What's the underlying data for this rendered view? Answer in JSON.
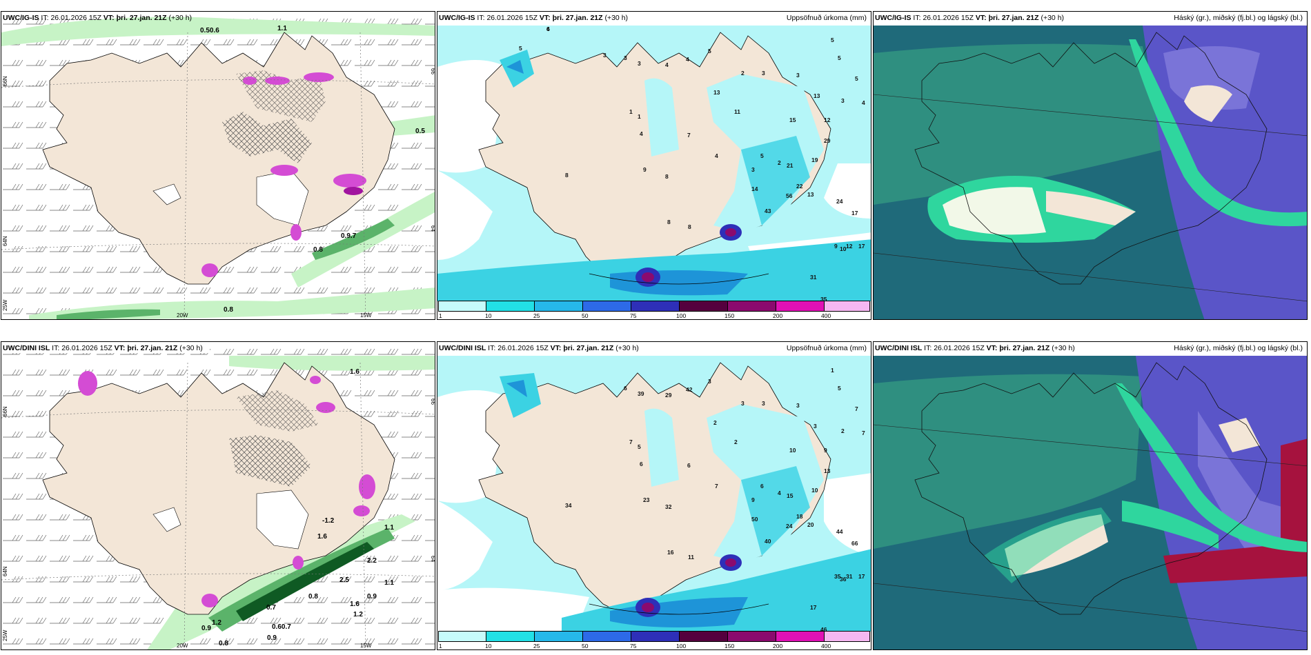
{
  "panels": [
    {
      "id": "top-left",
      "header": {
        "model": "UWC/IG-IS",
        "it_label": "IT:",
        "it_value": "26.01.2026 15Z",
        "vt_label": "VT:",
        "vt_value": "þri. 27.jan. 21Z",
        "lead": "(+30 h)"
      },
      "right_title": "",
      "lat_labels": [
        "66N",
        "64N",
        "25W"
      ],
      "lon_labels": [
        "20W",
        "15W"
      ],
      "right_lat_labels": [
        "66",
        "64"
      ],
      "values": [
        "0.50.6",
        "1.1",
        "0.5",
        "0.9.7",
        "0.8",
        "0.8"
      ]
    },
    {
      "id": "top-middle",
      "header": {
        "model": "UWC/IG-IS",
        "it_label": "IT:",
        "it_value": "26.01.2026 15Z",
        "vt_label": "VT:",
        "vt_value": "þri. 27.jan. 21Z",
        "lead": "(+30 h)"
      },
      "right_title": "Uppsöfnuð úrkoma (mm)",
      "values": [
        "6",
        "5",
        "3",
        "3",
        "3",
        "4",
        "4",
        "5",
        "2",
        "3",
        "3",
        "13",
        "11",
        "13",
        "15",
        "12",
        "29",
        "19",
        "21",
        "22",
        "13",
        "14",
        "43",
        "56",
        "24",
        "31",
        "35",
        "17",
        "17",
        "12",
        "9",
        "10",
        "9",
        "8",
        "8",
        "8",
        "8",
        "1",
        "1",
        "4",
        "7",
        "4",
        "3",
        "5",
        "2",
        "3",
        "4",
        "5",
        "5",
        "5",
        "4"
      ]
    },
    {
      "id": "top-right",
      "header": {
        "model": "UWC/IG-IS",
        "it_label": "IT:",
        "it_value": "26.01.2026 15Z",
        "vt_label": "VT:",
        "vt_value": "þri. 27.jan. 21Z",
        "lead": "(+30 h)"
      },
      "right_title": "Háský (gr.), miðský (fj.bl.) og lágský (bl.)"
    },
    {
      "id": "bottom-left",
      "header": {
        "model": "UWC/DINI ISL",
        "it_label": "IT:",
        "it_value": "26.01.2026 15Z",
        "vt_label": "VT:",
        "vt_value": "þri. 27.jan. 21Z",
        "lead": "(+30 h)"
      },
      "right_title": "",
      "lat_labels": [
        "66N",
        "64N",
        "25W"
      ],
      "lon_labels": [
        "20W",
        "15W"
      ],
      "right_lat_labels": [
        "66",
        "64"
      ],
      "values": [
        "1.6",
        "-1.2",
        "1.1",
        "1.6",
        "2.5",
        "1.1",
        "0.9",
        "1.6",
        "1.2",
        "0.7",
        "1.2",
        "0.9",
        "0.60.7",
        "0.8",
        "0.9",
        "2.2",
        "0.8"
      ]
    },
    {
      "id": "bottom-middle",
      "header": {
        "model": "UWC/DINI ISL",
        "it_label": "IT:",
        "it_value": "26.01.2026 15Z",
        "vt_label": "VT:",
        "vt_value": "þri. 27.jan. 21Z",
        "lead": "(+30 h)"
      },
      "right_title": "Uppsöfnuð úrkoma (mm)",
      "values": [
        "6",
        "39",
        "29",
        "42",
        "3",
        "3",
        "3",
        "3",
        "3",
        "2",
        "2",
        "10",
        "9",
        "13",
        "10",
        "15",
        "18",
        "20",
        "50",
        "40",
        "24",
        "44",
        "17",
        "46",
        "66",
        "17",
        "31",
        "35",
        "36",
        "23",
        "32",
        "34",
        "16",
        "11",
        "7",
        "5",
        "6",
        "6",
        "7",
        "9",
        "6",
        "4",
        "2",
        "7",
        "7",
        "5",
        "1"
      ]
    },
    {
      "id": "bottom-right",
      "header": {
        "model": "UWC/DINI ISL",
        "it_label": "IT:",
        "it_value": "26.01.2026 15Z",
        "vt_label": "VT:",
        "vt_value": "þri. 27.jan. 21Z",
        "lead": "(+30 h)"
      },
      "right_title": "Háský (gr.), miðský (fj.bl.) og lágský (bl.)"
    }
  ],
  "colorbar": {
    "ticks": [
      "1",
      "10",
      "25",
      "50",
      "75",
      "100",
      "150",
      "200",
      "400"
    ],
    "colors": [
      "#c6fbfb",
      "#22e0e6",
      "#26b8ea",
      "#2d6ae8",
      "#2e2fb8",
      "#55003e",
      "#8b0a6e",
      "#e011b5",
      "#f5b7f1"
    ]
  },
  "palette": {
    "land": "#f3e6d7",
    "sea": "#ffffff",
    "precip_light": "#b5f6f8",
    "precip_mid": "#3bd2e3",
    "precip_dark": "#1e94d8",
    "cloud_dark": "#1f6a7a",
    "cloud_mid": "#2f8f80",
    "cloud_green": "#2fd69e",
    "cloud_purple": "#5a55c8",
    "cloud_red": "#a6123e",
    "wind_green_light": "#c7f3c6",
    "wind_green_dark": "#0f5a23",
    "magenta": "#d44cd4"
  }
}
